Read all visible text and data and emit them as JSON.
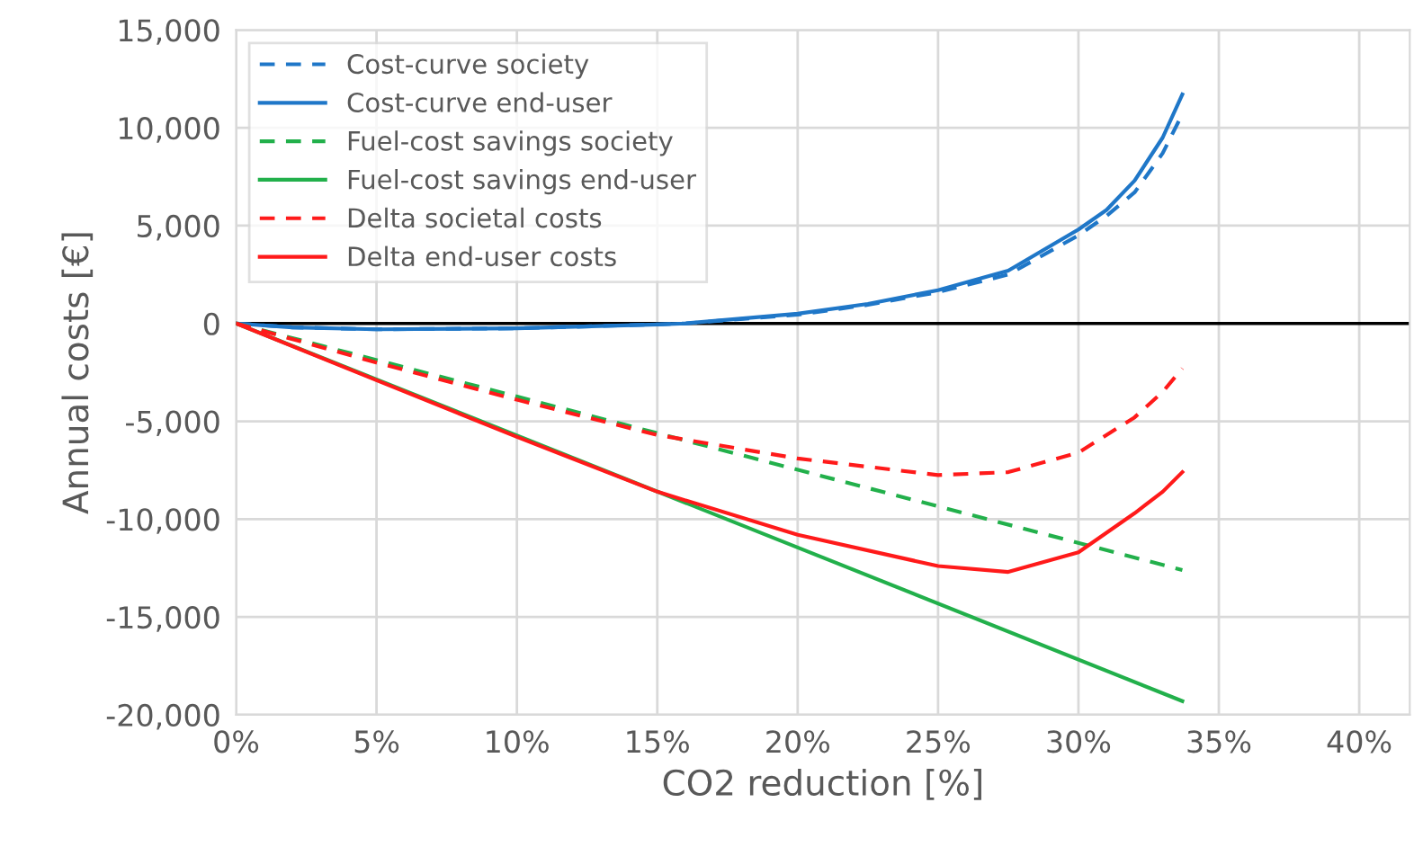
{
  "chart_data": {
    "type": "line",
    "xlabel": "CO2 reduction [%]",
    "ylabel": "Annual costs [€]",
    "xlim": [
      0,
      41.8
    ],
    "ylim": [
      -20000,
      15000
    ],
    "xticks": [
      {
        "value": 0,
        "label": "0%"
      },
      {
        "value": 5,
        "label": "5%"
      },
      {
        "value": 10,
        "label": "10%"
      },
      {
        "value": 15,
        "label": "15%"
      },
      {
        "value": 20,
        "label": "20%"
      },
      {
        "value": 25,
        "label": "25%"
      },
      {
        "value": 30,
        "label": "30%"
      },
      {
        "value": 35,
        "label": "35%"
      },
      {
        "value": 40,
        "label": "40%"
      }
    ],
    "yticks": [
      {
        "value": -20000,
        "label": "-20,000"
      },
      {
        "value": -15000,
        "label": "-15,000"
      },
      {
        "value": -10000,
        "label": "-10,000"
      },
      {
        "value": -5000,
        "label": "-5,000"
      },
      0,
      {
        "value": 5000,
        "label": "5,000"
      },
      {
        "value": 10000,
        "label": "10,000"
      },
      {
        "value": 15000,
        "label": "15,000"
      }
    ],
    "grid": true,
    "legend": "top left",
    "marker": "none",
    "ref_lines": [
      {
        "axis": "y",
        "value": 0,
        "color": "#000000"
      }
    ],
    "series": [
      {
        "name": "Cost-curve society",
        "color": "#1f77c8",
        "line_style": "dashed",
        "x": [
          0,
          2,
          5,
          10,
          15,
          16,
          20,
          22.5,
          25,
          27.5,
          30,
          31,
          32,
          33,
          33.7
        ],
        "values": [
          0,
          -200,
          -300,
          -250,
          -50,
          0,
          450,
          950,
          1600,
          2500,
          4500,
          5500,
          6700,
          8700,
          10700
        ]
      },
      {
        "name": "Cost-curve end-user",
        "color": "#1f77c8",
        "line_style": "solid",
        "x": [
          0,
          2,
          5,
          10,
          15,
          16,
          20,
          22.5,
          25,
          27.5,
          30,
          31,
          32,
          33,
          33.7
        ],
        "values": [
          0,
          -200,
          -300,
          -250,
          -50,
          0,
          500,
          1000,
          1700,
          2700,
          4800,
          5800,
          7300,
          9500,
          11700
        ]
      },
      {
        "name": "Fuel-cost savings society",
        "color": "#22b04b",
        "line_style": "dashed",
        "x": [
          0,
          33.7
        ],
        "values": [
          0,
          -12600
        ]
      },
      {
        "name": "Fuel-cost savings end-user",
        "color": "#22b04b",
        "line_style": "solid",
        "x": [
          0,
          33.7
        ],
        "values": [
          0,
          -19300
        ]
      },
      {
        "name": "Delta societal costs",
        "color": "#ff1a1a",
        "line_style": "dashed",
        "x": [
          0,
          5,
          10,
          15,
          20,
          25,
          27.5,
          30,
          32,
          33,
          33.7
        ],
        "values": [
          0,
          -2000,
          -3900,
          -5700,
          -6900,
          -7750,
          -7600,
          -6600,
          -4800,
          -3500,
          -2300
        ]
      },
      {
        "name": "Delta end-user costs",
        "color": "#ff1a1a",
        "line_style": "solid",
        "x": [
          0,
          5,
          10,
          15,
          20,
          25,
          27.5,
          30,
          32,
          33,
          33.7
        ],
        "values": [
          0,
          -2900,
          -5800,
          -8600,
          -10800,
          -12400,
          -12700,
          -11700,
          -9700,
          -8600,
          -7600
        ]
      }
    ]
  }
}
